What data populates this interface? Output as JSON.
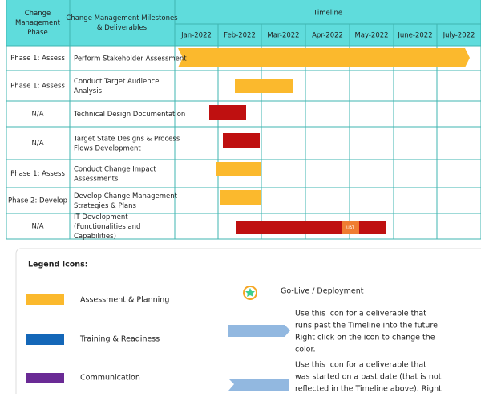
{
  "table": {
    "header": {
      "phase": "Change Management Phase",
      "milestones": "Change Management Milestones & Deliverables",
      "timeline": "Timeline",
      "months": [
        "Jan-2022",
        "Feb-2022",
        "Mar-2022",
        "Apr-2022",
        "May-2022",
        "June-2022",
        "July-2022"
      ]
    },
    "rows": [
      [
        "Phase 1: Assess",
        "Perform Stakeholder Assessment"
      ],
      [
        "Phase 1: Assess",
        "Conduct Target Audience Analysis"
      ],
      [
        "N/A",
        "Technical Design Documentation"
      ],
      [
        "N/A",
        "Target State Designs & Process Flows Development"
      ],
      [
        "Phase 1: Assess",
        "Conduct Change Impact Assessments"
      ],
      [
        "Phase 2: Develop",
        "Develop Change Management Strategies & Plans"
      ],
      [
        "N/A",
        "IT Development (Functionalities and Capabilities)"
      ]
    ],
    "uat": "UAT"
  },
  "legend": {
    "title": "Legend Icons:",
    "items": [
      "Assessment & Planning",
      "Training & Readiness",
      "Communication"
    ],
    "golive": "Go-Live / Deployment",
    "future_note": [
      "Use this icon for a deliverable that",
      "runs past the Timeline into the future.",
      "Right click on the icon to change the",
      "color."
    ],
    "past_note": [
      "Use this icon for a deliverable that",
      "was started on a past date (that is not",
      "reflected in the Timeline above). Right"
    ]
  }
}
